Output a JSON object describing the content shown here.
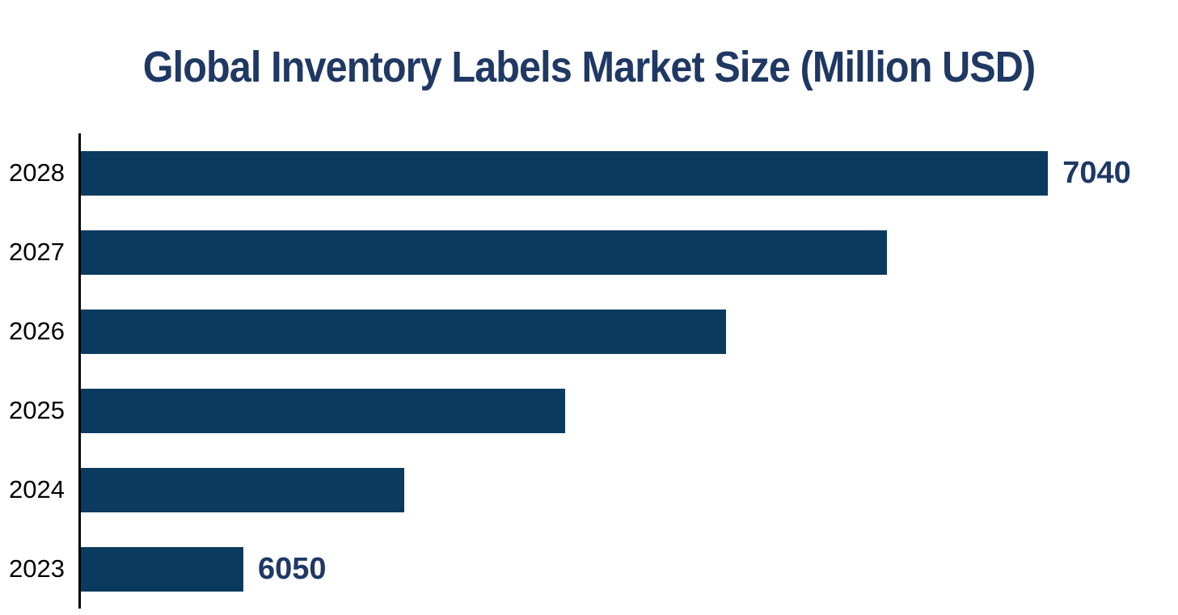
{
  "page": {
    "background": "#ffffff"
  },
  "chart_data": {
    "type": "bar",
    "orientation": "horizontal",
    "title": "Global Inventory Labels Market Size (Million USD)",
    "title_color": "#1F3864",
    "bar_color": "#0A3A5E",
    "axis_line_color": "#000000",
    "category_label_color": "#000000",
    "value_label_color": "#1F3864",
    "categories": [
      "2028",
      "2027",
      "2026",
      "2025",
      "2024",
      "2023"
    ],
    "series": [
      {
        "name": "Market Size (Million USD)",
        "values": [
          7040,
          6842,
          6644,
          6446,
          6248,
          6050
        ]
      }
    ],
    "value_labels": [
      "7040",
      "",
      "",
      "",
      "",
      "6050"
    ],
    "xlim": [
      5850,
      7200
    ],
    "grid": false,
    "legend": false,
    "x_axis_ticks": [],
    "baseline_axis": "left-vertical"
  }
}
